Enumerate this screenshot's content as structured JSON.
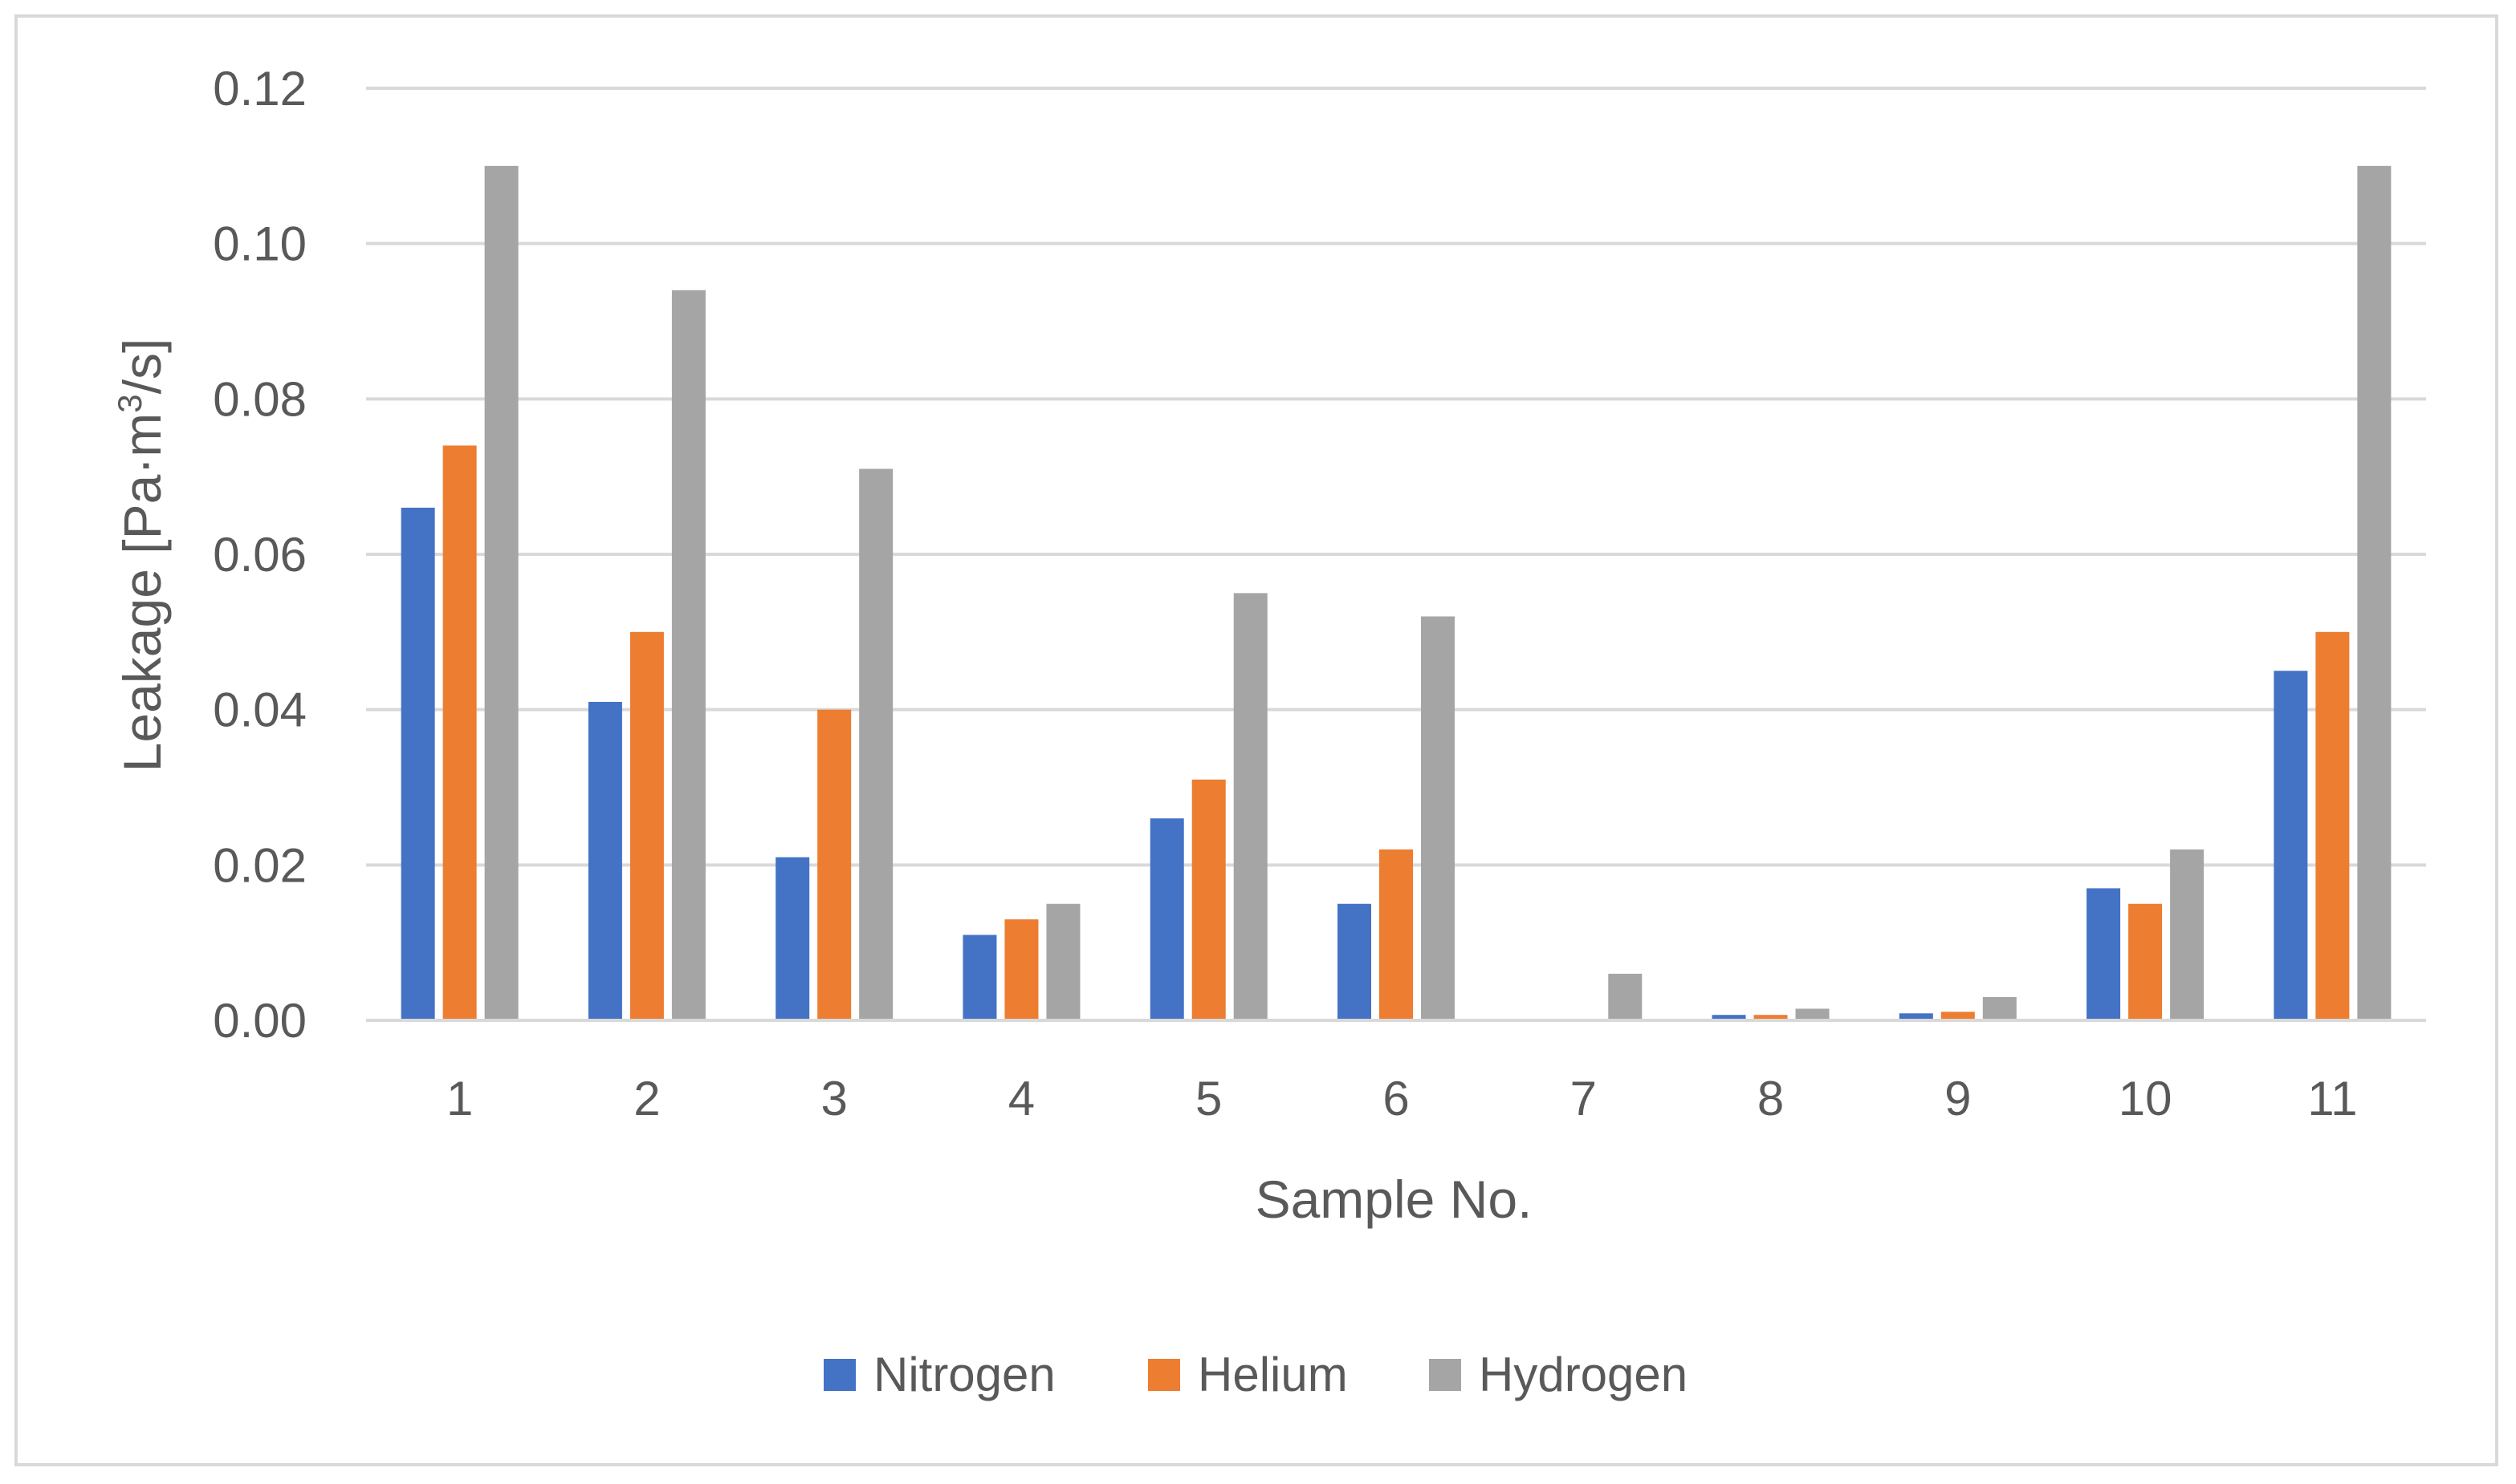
{
  "chart_data": {
    "type": "bar",
    "title": "",
    "xlabel": "Sample No.",
    "ylabel_main": "Leakage [Pa·m",
    "ylabel_sup": "3",
    "ylabel_tail": "/s]",
    "ylim": [
      0,
      0.12
    ],
    "yticks": [
      "0.00",
      "0.02",
      "0.04",
      "0.06",
      "0.08",
      "0.10",
      "0.12"
    ],
    "ytick_values": [
      0,
      0.02,
      0.04,
      0.06,
      0.08,
      0.1,
      0.12
    ],
    "grid": true,
    "legend_position": "bottom",
    "categories": [
      "1",
      "2",
      "3",
      "4",
      "5",
      "6",
      "7",
      "8",
      "9",
      "10",
      "11"
    ],
    "series": [
      {
        "name": "Nitrogen",
        "color": "#4472c4",
        "values": [
          0.066,
          0.041,
          0.021,
          0.011,
          0.026,
          0.015,
          0.0,
          0.0007,
          0.0009,
          0.017,
          0.045
        ]
      },
      {
        "name": "Helium",
        "color": "#ed7d31",
        "values": [
          0.074,
          0.05,
          0.04,
          0.013,
          0.031,
          0.022,
          0.0,
          0.0007,
          0.0011,
          0.015,
          0.05
        ]
      },
      {
        "name": "Hydrogen",
        "color": "#a5a5a5",
        "values": [
          0.11,
          0.094,
          0.071,
          0.015,
          0.055,
          0.052,
          0.006,
          0.0015,
          0.003,
          0.022,
          0.11
        ]
      }
    ]
  }
}
